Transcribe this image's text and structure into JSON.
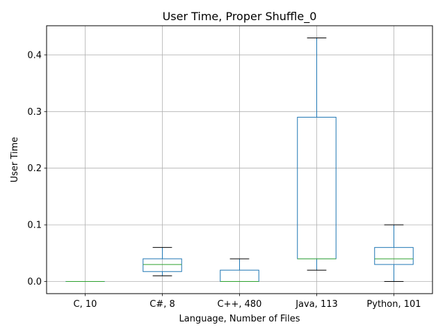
{
  "chart_data": {
    "type": "box",
    "title": "User Time, Proper Shuffle_0",
    "xlabel": "Language, Number of Files",
    "ylabel": "User Time",
    "ylim": [
      -0.0215,
      0.4515
    ],
    "yticks": [
      0.0,
      0.1,
      0.2,
      0.3,
      0.4
    ],
    "ytick_labels": [
      "0.0",
      "0.1",
      "0.2",
      "0.3",
      "0.4"
    ],
    "grid": true,
    "categories": [
      "C, 10",
      "C#, 8",
      "C++, 480",
      "Java, 113",
      "Python, 101"
    ],
    "boxes": [
      {
        "whisker_low": 0.0,
        "q1": 0.0,
        "median": 0.0,
        "q3": 0.0,
        "whisker_high": 0.0
      },
      {
        "whisker_low": 0.01,
        "q1": 0.0175,
        "median": 0.03,
        "q3": 0.04,
        "whisker_high": 0.06
      },
      {
        "whisker_low": 0.0,
        "q1": 0.0,
        "median": 0.0,
        "q3": 0.02,
        "whisker_high": 0.04
      },
      {
        "whisker_low": 0.02,
        "q1": 0.04,
        "median": 0.04,
        "q3": 0.29,
        "whisker_high": 0.43
      },
      {
        "whisker_low": 0.0,
        "q1": 0.03,
        "median": 0.04,
        "q3": 0.06,
        "whisker_high": 0.1
      }
    ],
    "colors": {
      "box": "#1f77b4",
      "median": "#2ca02c",
      "whisker_cap": "#000000",
      "grid": "#b0b0b0"
    }
  }
}
